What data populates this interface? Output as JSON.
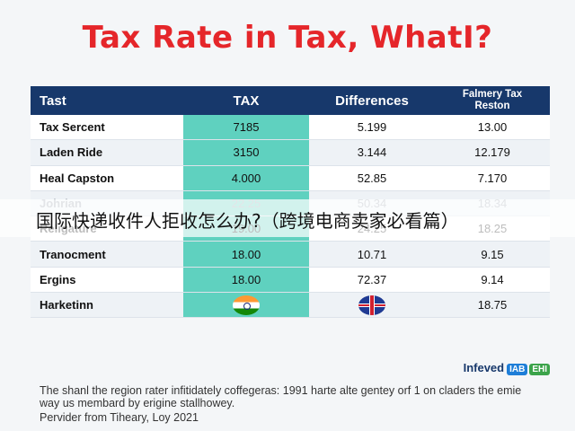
{
  "chart_data": {
    "type": "table",
    "title": "Tax Rate in Tax, WhatI?",
    "columns": [
      "Tast",
      "TAX",
      "Differences",
      "Falmery Tax Reston"
    ],
    "rows": [
      {
        "name": "Tax Sercent",
        "tax": "7185",
        "diff": "5.199",
        "rate": "13.00"
      },
      {
        "name": "Laden Ride",
        "tax": "3150",
        "diff": "3.144",
        "rate": "12.179"
      },
      {
        "name": "Heal Capston",
        "tax": "4.000",
        "diff": "52.85",
        "rate": "7.170"
      },
      {
        "name": "Johrian",
        "tax": "22.25",
        "diff": "50.34",
        "rate": "18.34",
        "faded": true
      },
      {
        "name": "Religature",
        "tax": "19.00",
        "diff": "24.25",
        "rate": "18.25"
      },
      {
        "name": "Tranocment",
        "tax": "18.00",
        "diff": "10.71",
        "rate": "9.15"
      },
      {
        "name": "Ergins",
        "tax": "18.00",
        "diff": "72.37",
        "rate": "9.14"
      },
      {
        "name": "Harketinn",
        "tax": "",
        "diff": "",
        "rate": "18.75",
        "tax_flag": "india-flag-icon",
        "diff_flag": "uk-flag-icon"
      }
    ],
    "colors": {
      "header": "#17386b",
      "tax_column": "#5fd1bf",
      "title": "#e5262a"
    }
  },
  "overlay_text": "国际快递收件人拒收怎么办?（跨境电商卖家必看篇）",
  "brand": {
    "name": "Infeved",
    "badge1": "IAB",
    "badge2": "EHI"
  },
  "footnote": "The shanl the region rater infitidately coffegeras: 1991 harte alte gentey orf 1 on claders the emie way us membard by erigine stallhowey.",
  "source": "Pervider from Tiheary, Loy 2021"
}
